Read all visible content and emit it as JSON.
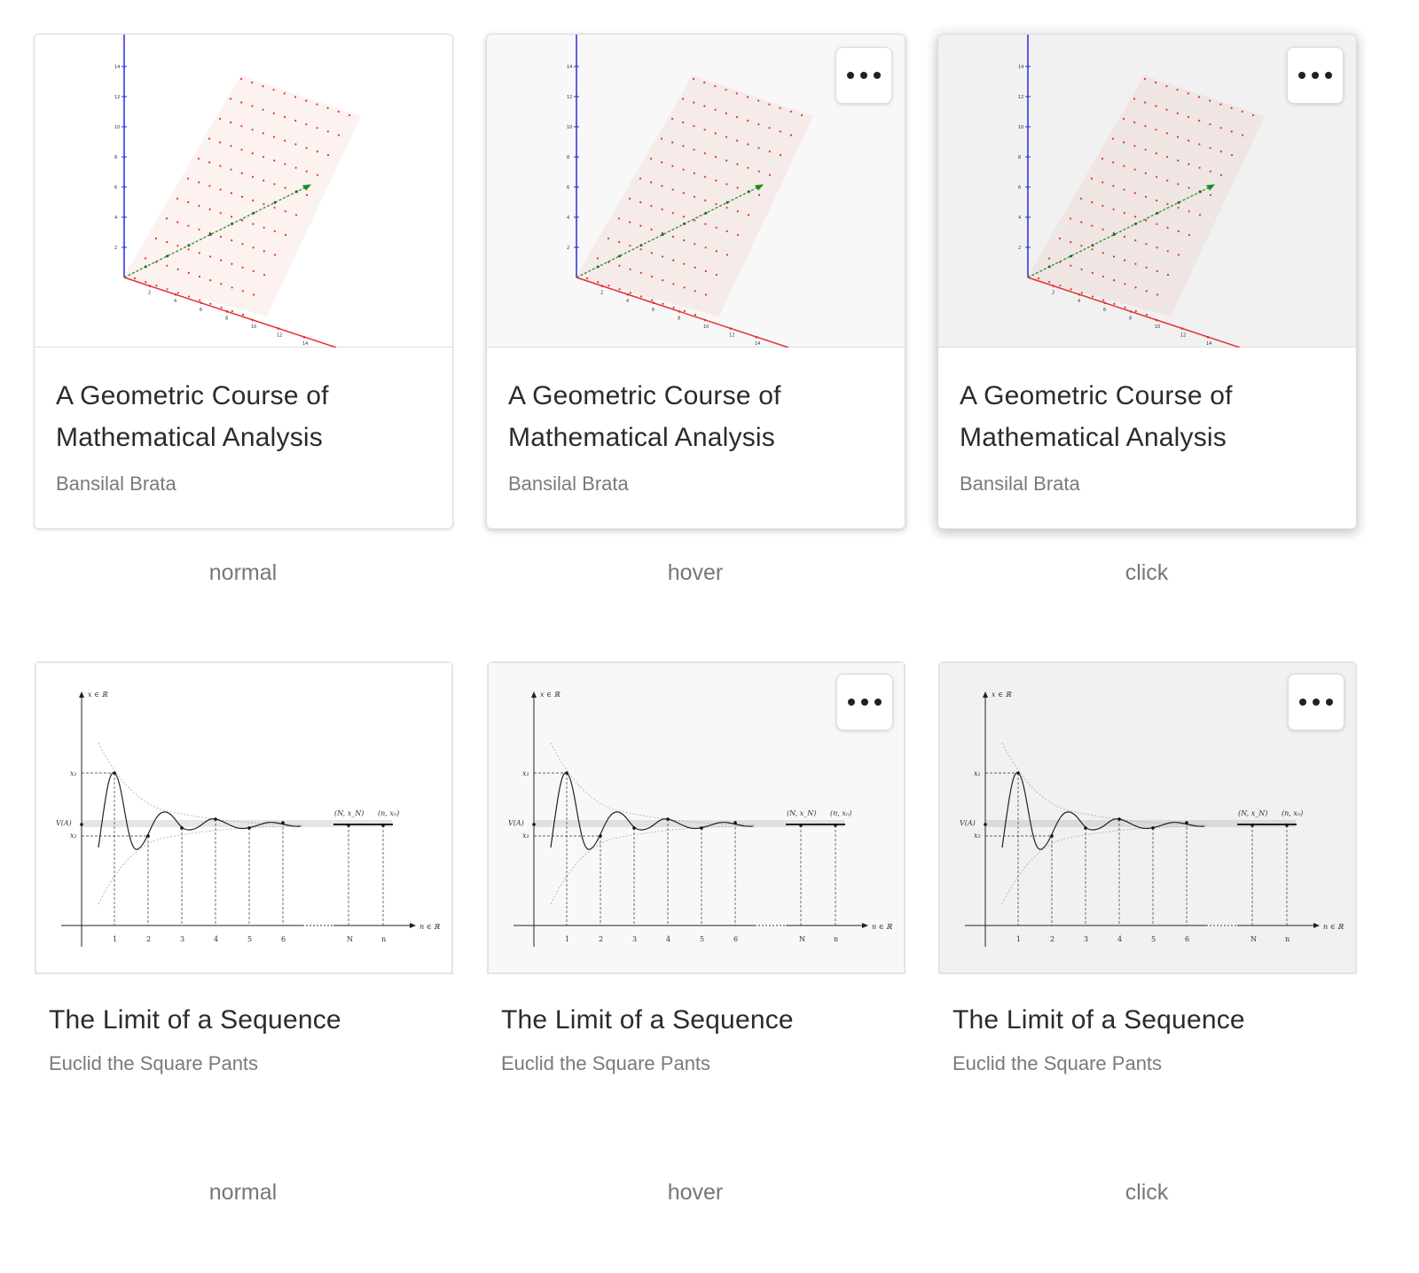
{
  "more_icon": "more-horizontal-icon",
  "colors": {
    "card_border": "#dcdcdc",
    "hover_bg": "#f8f8f8",
    "click_bg": "#f1f1f1",
    "title": "#2b2b2b",
    "author": "#7a7a7a",
    "state_label": "#777777"
  },
  "rows": [
    {
      "book": {
        "title_line1": "A Geometric Course of",
        "title_line2": "Mathematical Analysis",
        "author": "Bansilal Brata",
        "thumbnail": "3d-vector-plot-thumbnail"
      },
      "states": [
        {
          "label": "normal",
          "show_more": false
        },
        {
          "label": "hover",
          "show_more": true
        },
        {
          "label": "click",
          "show_more": true
        }
      ]
    },
    {
      "book": {
        "title": "The Limit of a Sequence",
        "author": "Euclid the Square Pants",
        "thumbnail": "sequence-limit-plot-thumbnail"
      },
      "states": [
        {
          "label": "normal",
          "show_more": false
        },
        {
          "label": "hover",
          "show_more": true
        },
        {
          "label": "click",
          "show_more": true
        }
      ]
    }
  ]
}
